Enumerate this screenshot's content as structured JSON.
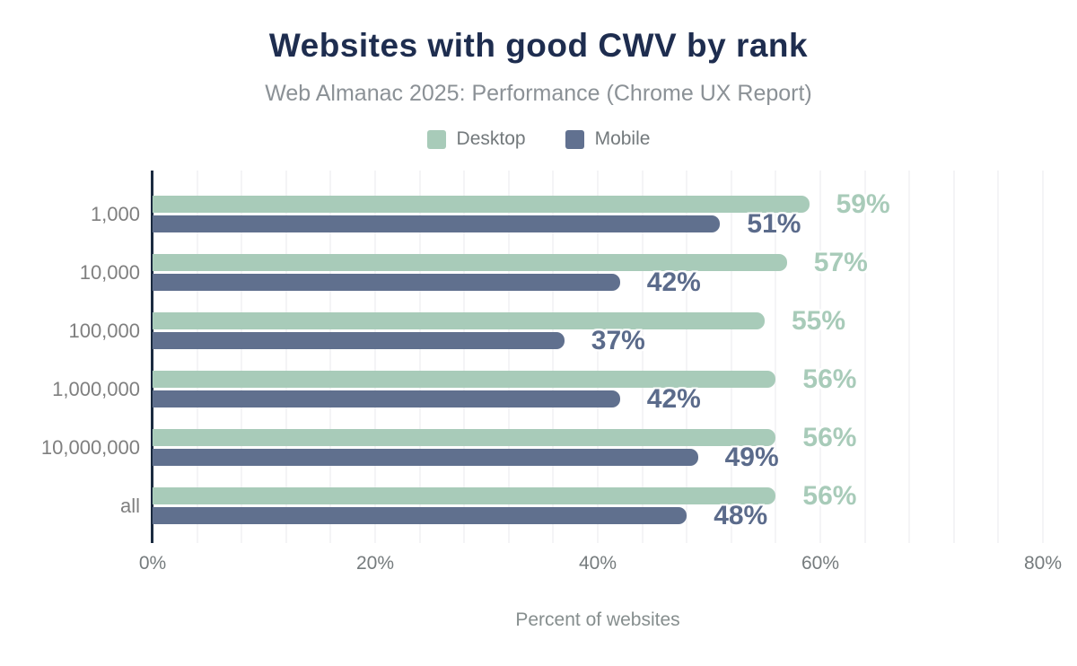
{
  "title": "Websites with good CWV by rank",
  "subtitle": "Web Almanac 2025: Performance (Chrome UX Report)",
  "legend": [
    {
      "label": "Desktop",
      "color": "#a8cbb9"
    },
    {
      "label": "Mobile",
      "color": "#617190"
    }
  ],
  "colors": {
    "desktop_bar": "#a8cbb9",
    "mobile_bar": "#60708e",
    "desktop_value_text": "#a8cbb9",
    "mobile_value_text": "#5b6b8b",
    "title_text": "#1e2d4f",
    "subtitle_text": "#8b9196",
    "axis_line": "#1b2b40",
    "gridline": "#f4f4f6",
    "category_text": "#7f7f7f",
    "tick_text": "#757b7d"
  },
  "chart_data": {
    "type": "bar",
    "orientation": "horizontal",
    "title": "Websites with good CWV by rank",
    "subtitle": "Web Almanac 2025: Performance (Chrome UX Report)",
    "categories": [
      "1,000",
      "10,000",
      "100,000",
      "1,000,000",
      "10,000,000",
      "all"
    ],
    "series": [
      {
        "name": "Desktop",
        "color": "#a8cbb9",
        "label_color": "#a8cbb9",
        "values": [
          59,
          57,
          55,
          56,
          56,
          56
        ]
      },
      {
        "name": "Mobile",
        "color": "#60708e",
        "label_color": "#5b6b8b",
        "values": [
          51,
          42,
          37,
          42,
          49,
          48
        ]
      }
    ],
    "value_suffix": "%",
    "xlabel": "Percent of websites",
    "x_ticks": [
      "0%",
      "20%",
      "40%",
      "60%",
      "80%"
    ],
    "xlim": [
      0,
      80
    ],
    "grid": {
      "orientation": "vertical",
      "step_percent": 4
    },
    "legend_position": "top"
  }
}
